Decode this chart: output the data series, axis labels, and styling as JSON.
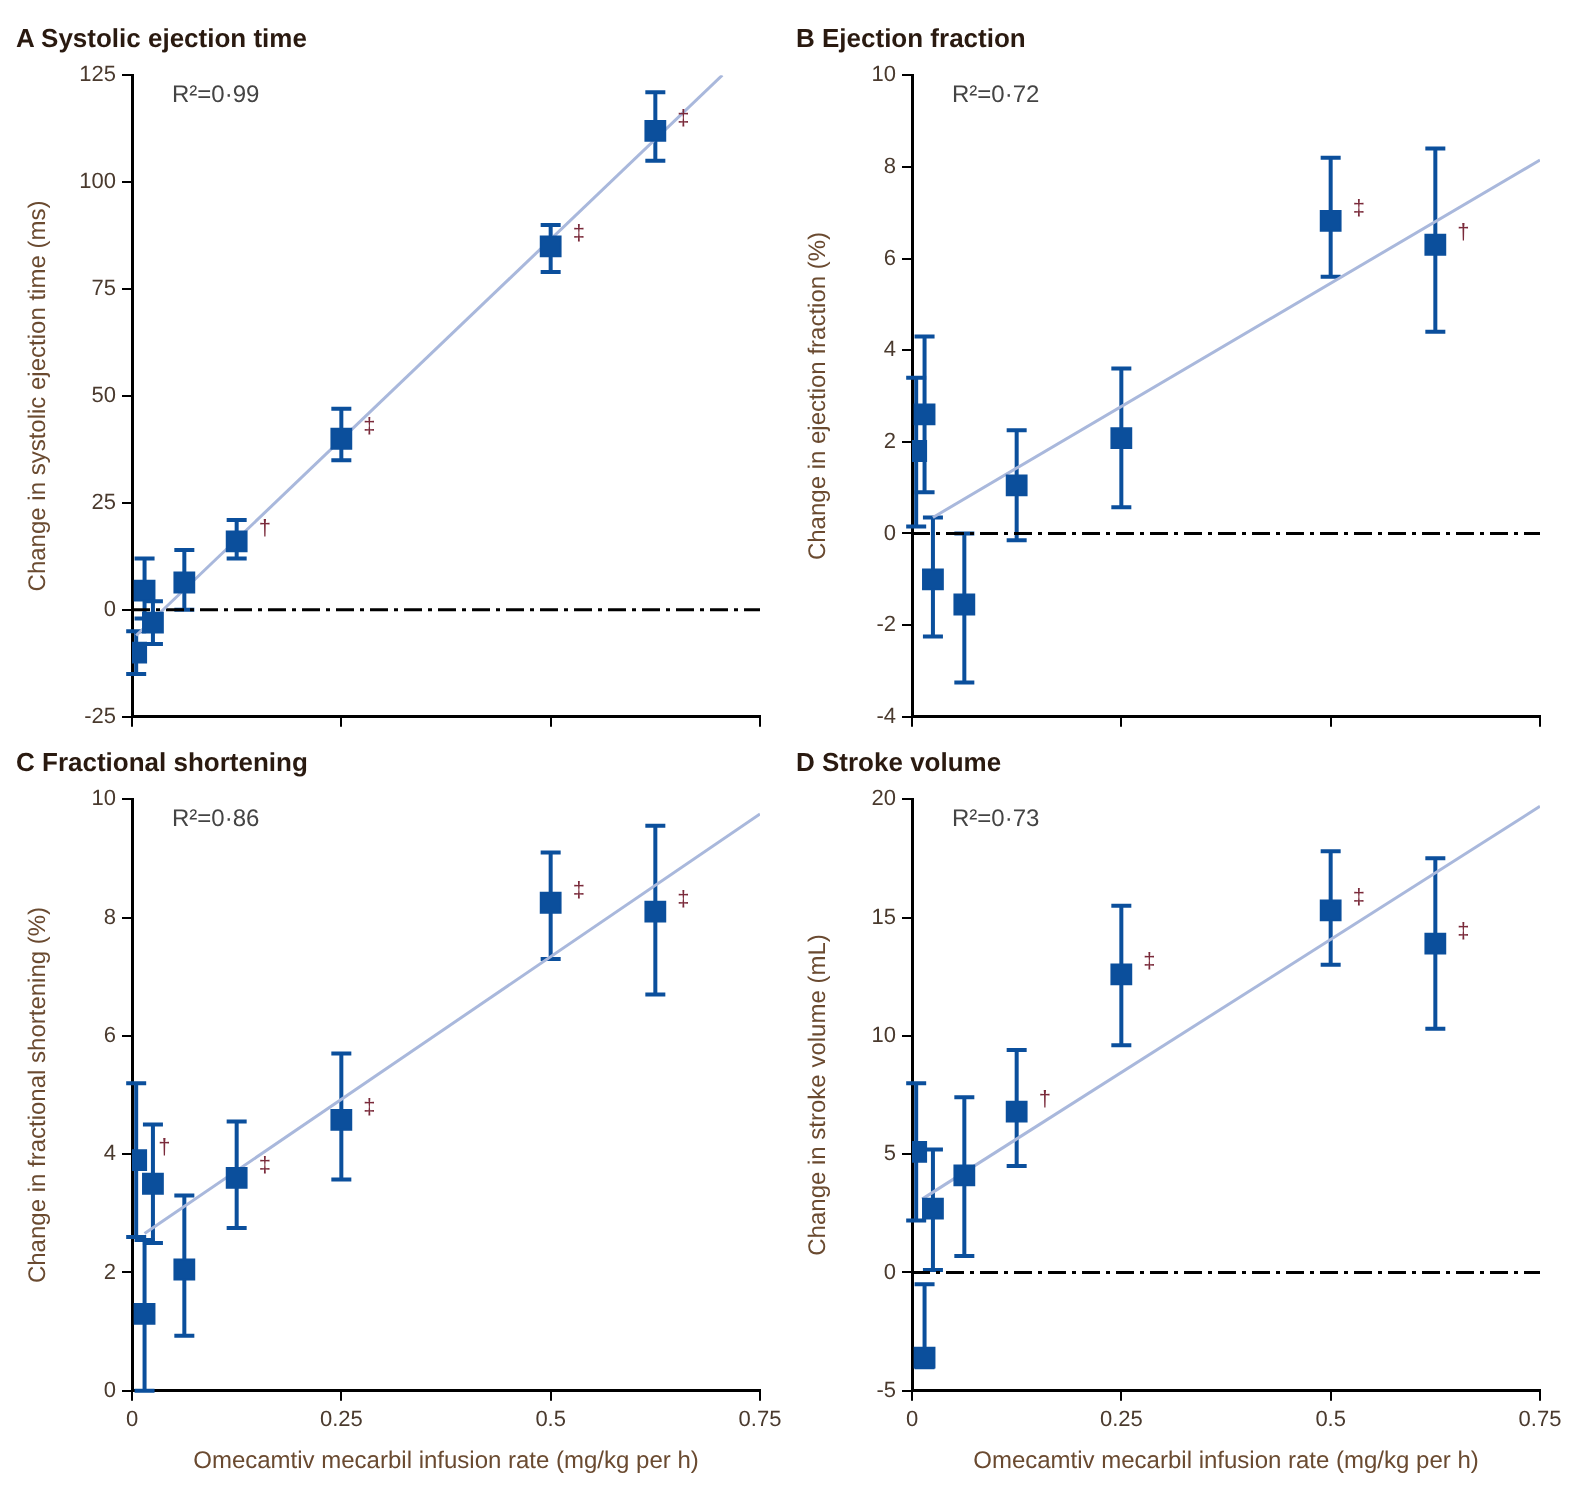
{
  "chart_data": [
    {
      "type": "scatter",
      "title": "A Systolic ejection time",
      "ylabel": "Change in systolic ejection time (ms)",
      "x": [
        0.005,
        0.015,
        0.025,
        0.0625,
        0.125,
        0.25,
        0.5,
        0.625
      ],
      "xlim": [
        0,
        0.75
      ],
      "xticks": [
        0,
        0.25,
        0.5,
        0.75
      ],
      "ylim": [
        -25,
        125
      ],
      "yticks": [
        -25,
        0,
        25,
        50,
        75,
        100,
        125
      ],
      "tick_labels": "y",
      "series": [
        {
          "type": "scatter",
          "marker": "square",
          "color": "#0b4f9c",
          "values": [
            -10,
            4.5,
            -3,
            6.4,
            16,
            40,
            85,
            112
          ],
          "errors": [
            [
              -15,
              -5
            ],
            [
              -2,
              12
            ],
            [
              -8,
              2
            ],
            [
              0,
              14
            ],
            [
              12,
              21
            ],
            [
              35,
              47
            ],
            [
              79,
              90
            ],
            [
              105,
              121
            ]
          ]
        },
        {
          "type": "line",
          "marker": "none",
          "color": "#a9b8dc",
          "x": [
            0.005,
            0.705
          ],
          "values": [
            -6,
            125
          ]
        }
      ],
      "ref_lines": [
        {
          "axis": "y",
          "value": 0,
          "color": "#000000",
          "line_style": "dashed"
        }
      ],
      "annotations": [
        "R²=0·99",
        {
          "text": "†",
          "x": 0.125,
          "y": 16
        },
        {
          "text": "‡",
          "x": 0.25,
          "y": 40
        },
        {
          "text": "‡",
          "x": 0.5,
          "y": 85
        },
        {
          "text": "‡",
          "x": 0.625,
          "y": 112
        }
      ]
    },
    {
      "type": "scatter",
      "title": "B Ejection fraction",
      "ylabel": "Change in ejection fraction (%)",
      "x": [
        0.005,
        0.015,
        0.025,
        0.0625,
        0.125,
        0.25,
        0.5,
        0.625
      ],
      "xlim": [
        0,
        0.75
      ],
      "xticks": [
        0,
        0.25,
        0.5,
        0.75
      ],
      "ylim": [
        -4,
        10
      ],
      "yticks": [
        -4,
        -2,
        0,
        2,
        4,
        6,
        8,
        10
      ],
      "tick_labels": "y",
      "series": [
        {
          "type": "scatter",
          "marker": "square",
          "color": "#0b4f9c",
          "values": [
            1.8,
            2.6,
            -1,
            -1.55,
            1.05,
            2.08,
            6.82,
            6.3
          ],
          "errors": [
            [
              0.15,
              3.4
            ],
            [
              0.9,
              4.3
            ],
            [
              -2.25,
              0.35
            ],
            [
              -3.25,
              0
            ],
            [
              -0.15,
              2.25
            ],
            [
              0.57,
              3.6
            ],
            [
              5.6,
              8.2
            ],
            [
              4.4,
              8.4
            ]
          ]
        },
        {
          "type": "line",
          "marker": "none",
          "color": "#a9b8dc",
          "x": [
            0.025,
            0.75
          ],
          "values": [
            0.35,
            8.15
          ]
        }
      ],
      "ref_lines": [
        {
          "axis": "y",
          "value": 0,
          "color": "#000000",
          "line_style": "dashed"
        }
      ],
      "annotations": [
        "R²=0·72",
        {
          "text": "‡",
          "x": 0.5,
          "y": 6.82
        },
        {
          "text": "†",
          "x": 0.625,
          "y": 6.3
        }
      ]
    },
    {
      "type": "scatter",
      "title": "C Fractional shortening",
      "xlabel": "Omecamtiv mecarbil infusion rate (mg/kg per h)",
      "ylabel": "Change in fractional shortening (%)",
      "x": [
        0.005,
        0.015,
        0.025,
        0.0625,
        0.125,
        0.25,
        0.5,
        0.625
      ],
      "xlim": [
        0,
        0.75
      ],
      "xticks": [
        0,
        0.25,
        0.5,
        0.75
      ],
      "ylim": [
        0,
        10
      ],
      "yticks": [
        0,
        2,
        4,
        6,
        8,
        10
      ],
      "series": [
        {
          "type": "scatter",
          "marker": "square",
          "color": "#0b4f9c",
          "values": [
            3.9,
            1.3,
            3.5,
            2.05,
            3.6,
            4.58,
            8.25,
            8.1
          ],
          "errors": [
            [
              2.6,
              5.2
            ],
            [
              0,
              2.55
            ],
            [
              2.5,
              4.5
            ],
            [
              0.93,
              3.3
            ],
            [
              2.75,
              4.55
            ],
            [
              3.57,
              5.7
            ],
            [
              7.3,
              9.1
            ],
            [
              6.7,
              9.55
            ]
          ]
        },
        {
          "type": "line",
          "marker": "none",
          "color": "#a9b8dc",
          "x": [
            0.015,
            0.75
          ],
          "values": [
            2.66,
            9.75
          ]
        }
      ],
      "annotations": [
        "R²=0·86",
        {
          "text": "†",
          "x": 0.005,
          "y": 3.9
        },
        {
          "text": "‡",
          "x": 0.125,
          "y": 3.6
        },
        {
          "text": "‡",
          "x": 0.25,
          "y": 4.58
        },
        {
          "text": "‡",
          "x": 0.5,
          "y": 8.25
        },
        {
          "text": "‡",
          "x": 0.625,
          "y": 8.1
        }
      ]
    },
    {
      "type": "scatter",
      "title": "D Stroke volume",
      "xlabel": "Omecamtiv mecarbil infusion rate (mg/kg per h)",
      "ylabel": "Change in stroke volume (mL)",
      "x": [
        0.005,
        0.015,
        0.025,
        0.0625,
        0.125,
        0.25,
        0.5,
        0.625
      ],
      "xlim": [
        0,
        0.75
      ],
      "xticks": [
        0,
        0.25,
        0.5,
        0.75
      ],
      "ylim": [
        -5,
        20
      ],
      "yticks": [
        -5,
        0,
        5,
        10,
        15,
        20
      ],
      "series": [
        {
          "type": "scatter",
          "marker": "square",
          "color": "#0b4f9c",
          "values": [
            5.1,
            -3.6,
            2.7,
            4.1,
            6.8,
            12.6,
            15.3,
            13.9
          ],
          "errors": [
            [
              2.2,
              8
            ],
            [
              -4,
              -0.5
            ],
            [
              0.1,
              5.2
            ],
            [
              0.7,
              7.4
            ],
            [
              4.5,
              9.4
            ],
            [
              9.6,
              15.5
            ],
            [
              13,
              17.8
            ],
            [
              10.3,
              17.5
            ]
          ]
        },
        {
          "type": "line",
          "marker": "none",
          "color": "#a9b8dc",
          "x": [
            0.012,
            0.75
          ],
          "values": [
            3.1,
            19.7
          ]
        }
      ],
      "ref_lines": [
        {
          "axis": "y",
          "value": 0,
          "color": "#000000",
          "line_style": "dashed"
        }
      ],
      "annotations": [
        "R²=0·73",
        {
          "text": "†",
          "x": 0.125,
          "y": 6.8
        },
        {
          "text": "‡",
          "x": 0.25,
          "y": 12.6
        },
        {
          "text": "‡",
          "x": 0.5,
          "y": 15.3
        },
        {
          "text": "‡",
          "x": 0.625,
          "y": 13.9
        }
      ]
    }
  ]
}
